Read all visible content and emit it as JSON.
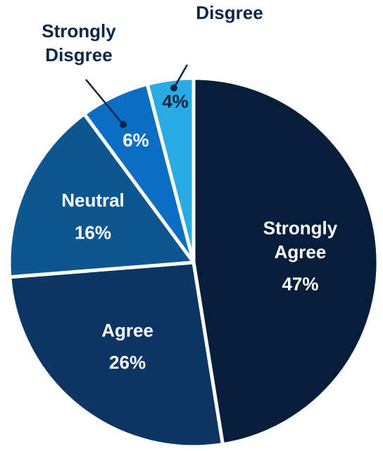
{
  "chart_data": {
    "type": "pie",
    "slices": [
      {
        "label_lines": [
          "Strongly",
          "Agree"
        ],
        "pct": "47%",
        "value": 47,
        "color": "#071e3b",
        "text_color": "#ffffff"
      },
      {
        "label_lines": [
          "Agree"
        ],
        "pct": "26%",
        "value": 26,
        "color": "#0c3563",
        "text_color": "#ffffff"
      },
      {
        "label_lines": [
          "Neutral"
        ],
        "pct": "16%",
        "value": 16,
        "color": "#0e5690",
        "text_color": "#ffffff"
      },
      {
        "label_lines": [
          "Strongly",
          "Disgree"
        ],
        "pct": "6%",
        "value": 6,
        "color": "#0a6fc4",
        "text_color": "#ffffff",
        "callout": true
      },
      {
        "label_lines": [
          "Disgree"
        ],
        "pct": "4%",
        "value": 4,
        "color": "#29aae2",
        "text_color": "#0b2748",
        "callout": true
      }
    ],
    "callout_label_color": "#0b2748",
    "pie_start_angle_deg": 0
  }
}
